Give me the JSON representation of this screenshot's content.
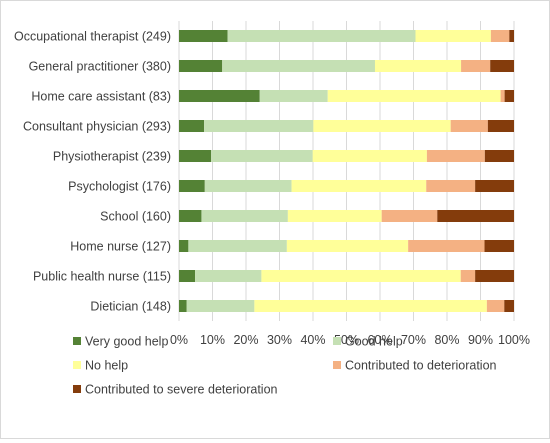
{
  "chart_data": {
    "type": "bar",
    "orientation": "horizontal",
    "stacked": "percent",
    "categories": [
      "Occupational therapist (249)",
      "General practitioner (380)",
      "Home care assistant (83)",
      "Consultant physician (293)",
      "Physiotherapist (239)",
      "Psychologist (176)",
      "School (160)",
      "Home nurse (127)",
      "Public health nurse (115)",
      "Dietician (148)"
    ],
    "series": [
      {
        "name": "Very good help",
        "color": "#548235",
        "values": [
          14.5,
          12.9,
          24.1,
          7.5,
          9.6,
          7.7,
          6.7,
          2.8,
          4.8,
          2.3
        ]
      },
      {
        "name": "Good help",
        "color": "#c5e0b4",
        "values": [
          56.1,
          45.6,
          20.3,
          32.6,
          30.3,
          25.9,
          25.8,
          29.4,
          19.8,
          20.2
        ]
      },
      {
        "name": "No help",
        "color": "#ffff99",
        "values": [
          22.5,
          25.7,
          51.6,
          41.0,
          34.1,
          40.2,
          28.0,
          36.2,
          59.5,
          69.4
        ]
      },
      {
        "name": "Contributed to deterioration",
        "color": "#f4b183",
        "values": [
          5.5,
          8.7,
          1.2,
          11.1,
          17.3,
          14.6,
          16.6,
          22.8,
          4.3,
          5.2
        ]
      },
      {
        "name": "Contributed to severe deterioration",
        "color": "#843c0c",
        "values": [
          1.4,
          7.1,
          2.8,
          7.8,
          8.7,
          11.6,
          22.9,
          8.8,
          11.6,
          2.9
        ]
      }
    ],
    "x_ticks": [
      "0%",
      "10%",
      "20%",
      "30%",
      "40%",
      "50%",
      "60%",
      "70%",
      "80%",
      "90%",
      "100%"
    ],
    "xlim": [
      0,
      100
    ],
    "grid": "vertical",
    "legend_position": "bottom",
    "title": "",
    "xlabel": "",
    "ylabel": ""
  }
}
